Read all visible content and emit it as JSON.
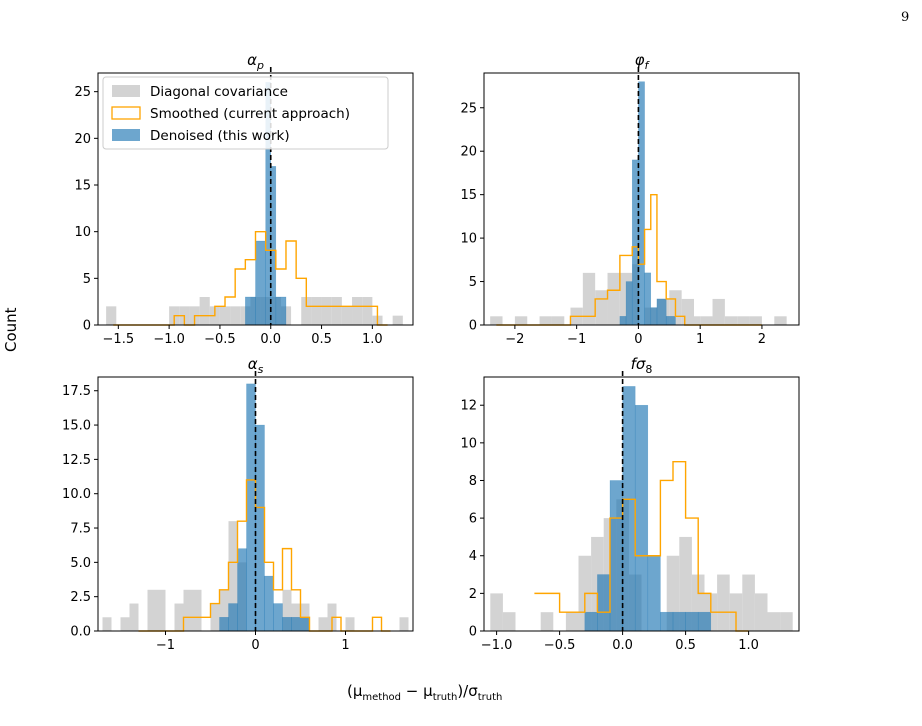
{
  "page_number": "9",
  "figure": {
    "ylabel": "Count",
    "xlabel": {
      "prefix": "(μ",
      "sub1": "method",
      "mid": " − μ",
      "sub2": "truth",
      "mid2": ")/σ",
      "sub3": "truth"
    }
  },
  "legend": [
    {
      "label": "Diagonal covariance",
      "style": "fill",
      "color": "#d3d3d3"
    },
    {
      "label": "Smoothed (current approach)",
      "style": "step",
      "color": "#ffa500"
    },
    {
      "label": "Denoised (this work)",
      "style": "fill",
      "color": "#1f77b4"
    }
  ],
  "chart_data": [
    {
      "type": "histogram",
      "title": "α_p",
      "xlim": [
        -1.7,
        1.4
      ],
      "ylim": [
        0,
        27
      ],
      "xticks": [
        -1.5,
        -1.0,
        -0.5,
        0.0,
        0.5,
        1.0
      ],
      "xtick_labels": [
        "−1.5",
        "−1.0",
        "−0.5",
        "0.0",
        "0.5",
        "1.0"
      ],
      "yticks": [
        0,
        5,
        10,
        15,
        20,
        25
      ],
      "vline": 0,
      "legend": true,
      "series": [
        {
          "name": "Diagonal covariance",
          "bins": [
            [
              -1.62,
              -1.52,
              2
            ],
            [
              -1.0,
              -0.9,
              2
            ],
            [
              -0.9,
              -0.8,
              2
            ],
            [
              -0.8,
              -0.7,
              2
            ],
            [
              -0.7,
              -0.6,
              3
            ],
            [
              -0.6,
              -0.5,
              2
            ],
            [
              -0.5,
              -0.4,
              2
            ],
            [
              -0.4,
              -0.3,
              2
            ],
            [
              -0.3,
              -0.2,
              2
            ],
            [
              -0.2,
              -0.1,
              3
            ],
            [
              -0.1,
              0.0,
              3
            ],
            [
              0.0,
              0.1,
              3
            ],
            [
              0.1,
              0.2,
              2
            ],
            [
              0.3,
              0.4,
              3
            ],
            [
              0.4,
              0.5,
              3
            ],
            [
              0.5,
              0.6,
              3
            ],
            [
              0.6,
              0.7,
              3
            ],
            [
              0.7,
              0.8,
              2
            ],
            [
              0.8,
              0.9,
              3
            ],
            [
              0.9,
              1.0,
              3
            ],
            [
              1.0,
              1.1,
              1
            ],
            [
              1.2,
              1.3,
              1
            ]
          ]
        },
        {
          "name": "Smoothed (current approach)",
          "bins": [
            [
              -1.55,
              -0.95,
              0
            ],
            [
              -0.95,
              -0.85,
              1
            ],
            [
              -0.85,
              -0.75,
              0
            ],
            [
              -0.75,
              -0.65,
              1
            ],
            [
              -0.65,
              -0.55,
              1
            ],
            [
              -0.55,
              -0.45,
              2
            ],
            [
              -0.45,
              -0.35,
              3
            ],
            [
              -0.35,
              -0.25,
              6
            ],
            [
              -0.25,
              -0.15,
              7
            ],
            [
              -0.15,
              -0.05,
              10
            ],
            [
              -0.05,
              0.05,
              8
            ],
            [
              0.05,
              0.15,
              6
            ],
            [
              0.15,
              0.25,
              9
            ],
            [
              0.25,
              0.35,
              5
            ],
            [
              0.35,
              0.45,
              2
            ],
            [
              0.45,
              0.55,
              2
            ],
            [
              0.55,
              0.65,
              2
            ],
            [
              0.65,
              0.75,
              2
            ],
            [
              0.75,
              0.85,
              2
            ],
            [
              0.85,
              0.95,
              2
            ],
            [
              0.95,
              1.05,
              2
            ],
            [
              1.05,
              1.15,
              0
            ]
          ]
        },
        {
          "name": "Denoised (this work)",
          "bins": [
            [
              -0.25,
              -0.15,
              3
            ],
            [
              -0.15,
              -0.05,
              9
            ],
            [
              -0.05,
              0.0,
              26
            ],
            [
              0.0,
              0.05,
              17
            ],
            [
              0.05,
              0.15,
              3
            ]
          ]
        }
      ]
    },
    {
      "type": "histogram",
      "title": "φ_f",
      "xlim": [
        -2.5,
        2.6
      ],
      "ylim": [
        0,
        29
      ],
      "xticks": [
        -2,
        -1,
        0,
        1,
        2
      ],
      "xtick_labels": [
        "−2",
        "−1",
        "0",
        "1",
        "2"
      ],
      "yticks": [
        0,
        5,
        10,
        15,
        20,
        25
      ],
      "vline": 0,
      "legend": false,
      "series": [
        {
          "name": "Diagonal covariance",
          "bins": [
            [
              -2.4,
              -2.2,
              1
            ],
            [
              -2.0,
              -1.8,
              1
            ],
            [
              -1.6,
              -1.4,
              1
            ],
            [
              -1.4,
              -1.2,
              1
            ],
            [
              -1.1,
              -0.9,
              2
            ],
            [
              -0.9,
              -0.7,
              6
            ],
            [
              -0.7,
              -0.5,
              4
            ],
            [
              -0.5,
              -0.3,
              6
            ],
            [
              -0.3,
              -0.1,
              6
            ],
            [
              -0.1,
              0.0,
              7
            ],
            [
              0.1,
              0.3,
              2
            ],
            [
              0.3,
              0.5,
              3
            ],
            [
              0.5,
              0.7,
              4
            ],
            [
              0.7,
              0.9,
              3
            ],
            [
              0.9,
              1.0,
              1
            ],
            [
              1.0,
              1.2,
              1
            ],
            [
              1.2,
              1.4,
              3
            ],
            [
              1.4,
              1.6,
              1
            ],
            [
              1.6,
              1.8,
              1
            ],
            [
              1.8,
              2.0,
              1
            ],
            [
              2.2,
              2.4,
              1
            ]
          ]
        },
        {
          "name": "Smoothed (current approach)",
          "bins": [
            [
              -2.3,
              -1.1,
              0
            ],
            [
              -1.1,
              -0.9,
              1
            ],
            [
              -0.9,
              -0.7,
              1
            ],
            [
              -0.7,
              -0.5,
              3
            ],
            [
              -0.5,
              -0.3,
              4
            ],
            [
              -0.3,
              -0.1,
              8
            ],
            [
              -0.1,
              0.0,
              9
            ],
            [
              0.0,
              0.1,
              7
            ],
            [
              0.1,
              0.2,
              11
            ],
            [
              0.2,
              0.3,
              15
            ],
            [
              0.3,
              0.45,
              5
            ],
            [
              0.45,
              0.6,
              3
            ],
            [
              0.6,
              0.75,
              1
            ],
            [
              0.75,
              2.0,
              0
            ]
          ]
        },
        {
          "name": "Denoised (this work)",
          "bins": [
            [
              -0.3,
              -0.2,
              1
            ],
            [
              -0.2,
              -0.1,
              5
            ],
            [
              -0.1,
              0.0,
              19
            ],
            [
              0.0,
              0.1,
              28
            ],
            [
              0.1,
              0.2,
              6
            ],
            [
              0.2,
              0.3,
              2
            ],
            [
              0.3,
              0.45,
              3
            ],
            [
              0.45,
              0.6,
              1
            ]
          ]
        }
      ]
    },
    {
      "type": "histogram",
      "title": "α_s",
      "xlim": [
        -1.75,
        1.75
      ],
      "ylim": [
        0,
        18.5
      ],
      "xticks": [
        -1,
        0,
        1
      ],
      "xtick_labels": [
        "−1",
        "0",
        "1"
      ],
      "yticks": [
        0,
        2.5,
        5,
        7.5,
        10,
        12.5,
        15,
        17.5
      ],
      "ytick_labels": [
        "0.0",
        "2.5",
        "5.0",
        "7.5",
        "10.0",
        "12.5",
        "15.0",
        "17.5"
      ],
      "vline": 0,
      "legend": false,
      "series": [
        {
          "name": "Diagonal covariance",
          "bins": [
            [
              -1.7,
              -1.6,
              1
            ],
            [
              -1.5,
              -1.4,
              1
            ],
            [
              -1.4,
              -1.3,
              2
            ],
            [
              -1.2,
              -1.1,
              3
            ],
            [
              -1.1,
              -1.0,
              3
            ],
            [
              -0.9,
              -0.8,
              2
            ],
            [
              -0.8,
              -0.7,
              3
            ],
            [
              -0.7,
              -0.6,
              3
            ],
            [
              -0.5,
              -0.4,
              2
            ],
            [
              -0.4,
              -0.3,
              3
            ],
            [
              -0.3,
              -0.2,
              8
            ],
            [
              -0.2,
              -0.1,
              5
            ],
            [
              0.3,
              0.4,
              3
            ],
            [
              0.4,
              0.5,
              2
            ],
            [
              0.5,
              0.6,
              2
            ],
            [
              0.7,
              0.8,
              1
            ],
            [
              0.8,
              0.9,
              2
            ],
            [
              1.0,
              1.1,
              1
            ],
            [
              1.6,
              1.7,
              1
            ]
          ]
        },
        {
          "name": "Smoothed (current approach)",
          "bins": [
            [
              -1.3,
              -0.8,
              0
            ],
            [
              -0.8,
              -0.5,
              1
            ],
            [
              -0.5,
              -0.4,
              2
            ],
            [
              -0.4,
              -0.3,
              3
            ],
            [
              -0.3,
              -0.2,
              5
            ],
            [
              -0.2,
              -0.1,
              8
            ],
            [
              -0.1,
              0.0,
              11
            ],
            [
              0.0,
              0.1,
              9
            ],
            [
              0.1,
              0.2,
              5
            ],
            [
              0.2,
              0.3,
              3
            ],
            [
              0.3,
              0.4,
              6
            ],
            [
              0.4,
              0.5,
              3
            ],
            [
              0.5,
              0.6,
              1
            ],
            [
              0.6,
              0.85,
              0
            ],
            [
              0.85,
              0.95,
              1
            ],
            [
              0.95,
              1.3,
              0
            ],
            [
              1.3,
              1.4,
              1
            ],
            [
              1.4,
              1.5,
              0
            ]
          ]
        },
        {
          "name": "Denoised (this work)",
          "bins": [
            [
              -0.4,
              -0.3,
              1
            ],
            [
              -0.3,
              -0.2,
              2
            ],
            [
              -0.2,
              -0.1,
              6
            ],
            [
              -0.1,
              0.0,
              18
            ],
            [
              0.0,
              0.1,
              15
            ],
            [
              0.1,
              0.2,
              4
            ],
            [
              0.2,
              0.3,
              2
            ],
            [
              0.3,
              0.4,
              1
            ],
            [
              0.4,
              0.6,
              1
            ]
          ]
        }
      ]
    },
    {
      "type": "histogram",
      "title": "fσ_8",
      "xlim": [
        -1.1,
        1.4
      ],
      "ylim": [
        0,
        13.5
      ],
      "xticks": [
        -1.0,
        -0.5,
        0.0,
        0.5,
        1.0
      ],
      "xtick_labels": [
        "−1.0",
        "−0.5",
        "0.0",
        "0.5",
        "1.0"
      ],
      "yticks": [
        0,
        2,
        4,
        6,
        8,
        10,
        12
      ],
      "vline": 0,
      "legend": false,
      "series": [
        {
          "name": "Diagonal covariance",
          "bins": [
            [
              -1.05,
              -0.95,
              2
            ],
            [
              -0.95,
              -0.85,
              1
            ],
            [
              -0.65,
              -0.55,
              1
            ],
            [
              -0.45,
              -0.35,
              1
            ],
            [
              -0.35,
              -0.25,
              4
            ],
            [
              -0.25,
              -0.15,
              5
            ],
            [
              -0.15,
              -0.05,
              6
            ],
            [
              -0.05,
              0.05,
              7
            ],
            [
              0.05,
              0.15,
              3
            ],
            [
              0.35,
              0.45,
              4
            ],
            [
              0.45,
              0.55,
              5
            ],
            [
              0.55,
              0.65,
              3
            ],
            [
              0.65,
              0.75,
              2
            ],
            [
              0.75,
              0.85,
              3
            ],
            [
              0.85,
              0.95,
              2
            ],
            [
              0.95,
              1.05,
              3
            ],
            [
              1.05,
              1.15,
              2
            ],
            [
              1.15,
              1.25,
              1
            ],
            [
              1.25,
              1.35,
              1
            ]
          ]
        },
        {
          "name": "Smoothed (current approach)",
          "bins": [
            [
              -0.7,
              -0.6,
              2
            ],
            [
              -0.6,
              -0.5,
              2
            ],
            [
              -0.5,
              -0.4,
              1
            ],
            [
              -0.4,
              -0.3,
              1
            ],
            [
              -0.3,
              -0.2,
              2
            ],
            [
              -0.2,
              -0.1,
              1
            ],
            [
              -0.1,
              0.0,
              6
            ],
            [
              0.0,
              0.1,
              7
            ],
            [
              0.1,
              0.2,
              4
            ],
            [
              0.2,
              0.3,
              4
            ],
            [
              0.3,
              0.4,
              8
            ],
            [
              0.4,
              0.5,
              9
            ],
            [
              0.5,
              0.6,
              6
            ],
            [
              0.6,
              0.7,
              2
            ],
            [
              0.7,
              0.8,
              1
            ],
            [
              0.8,
              0.9,
              1
            ],
            [
              0.9,
              1.0,
              0
            ]
          ]
        },
        {
          "name": "Denoised (this work)",
          "bins": [
            [
              -0.3,
              -0.2,
              1
            ],
            [
              -0.2,
              -0.1,
              3
            ],
            [
              -0.1,
              0.0,
              8
            ],
            [
              0.0,
              0.1,
              13
            ],
            [
              0.1,
              0.2,
              12
            ],
            [
              0.2,
              0.3,
              4
            ],
            [
              0.3,
              0.4,
              1
            ],
            [
              0.4,
              0.5,
              1
            ],
            [
              0.5,
              0.6,
              1
            ],
            [
              0.6,
              0.7,
              1
            ]
          ]
        }
      ]
    }
  ]
}
